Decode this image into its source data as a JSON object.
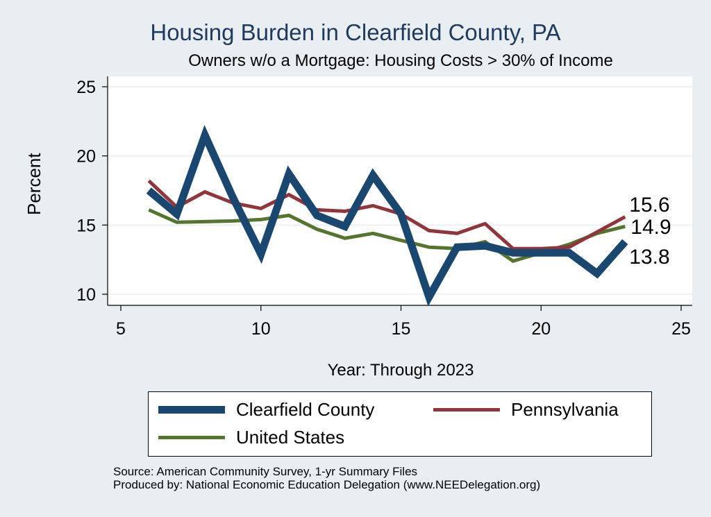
{
  "chart_data": {
    "type": "line",
    "title": "Housing Burden in Clearfield County, PA",
    "subtitle": "Owners w/o a Mortgage: Housing Costs > 30% of Income",
    "xlabel": "Year: Through 2023",
    "ylabel": "Percent",
    "xlim": [
      5,
      25
    ],
    "ylim": [
      10,
      25
    ],
    "xticks": [
      5,
      10,
      15,
      20,
      25
    ],
    "yticks": [
      10,
      15,
      20,
      25
    ],
    "series": [
      {
        "name": "Clearfield County",
        "color": "#1a476f",
        "x": [
          6,
          7,
          8,
          9,
          10,
          11,
          12,
          13,
          14,
          15,
          16,
          17,
          18,
          19,
          20,
          21,
          22,
          23
        ],
        "values": [
          17.5,
          15.8,
          21.5,
          17.0,
          12.9,
          18.7,
          15.7,
          14.9,
          18.6,
          15.8,
          9.8,
          13.4,
          13.5,
          13.0,
          13.0,
          13.0,
          11.5,
          13.8
        ],
        "end_label": "13.8"
      },
      {
        "name": "Pennsylvania",
        "color": "#90353b",
        "x": [
          6,
          7,
          8,
          9,
          10,
          11,
          12,
          13,
          14,
          15,
          16,
          17,
          18,
          19,
          20,
          21,
          22,
          23
        ],
        "values": [
          18.2,
          16.3,
          17.4,
          16.6,
          16.2,
          17.2,
          16.1,
          16.0,
          16.4,
          15.8,
          14.6,
          14.4,
          15.1,
          13.3,
          13.3,
          13.4,
          14.5,
          15.6
        ],
        "end_label": "15.6"
      },
      {
        "name": "United States",
        "color": "#55752f",
        "x": [
          6,
          7,
          8,
          9,
          10,
          11,
          12,
          13,
          14,
          15,
          16,
          17,
          18,
          19,
          20,
          21,
          22,
          23
        ],
        "values": [
          16.1,
          15.2,
          15.25,
          15.3,
          15.4,
          15.7,
          14.7,
          14.05,
          14.4,
          13.9,
          13.4,
          13.3,
          13.8,
          12.4,
          13.0,
          13.6,
          14.4,
          14.9
        ],
        "end_label": "14.9"
      }
    ],
    "legend": "bottom"
  },
  "footer": {
    "source": "Source: American Community Survey, 1-yr Summary Files",
    "produced_by": "Produced by: National Economic Education Delegation (www.NEEDelegation.org)"
  }
}
